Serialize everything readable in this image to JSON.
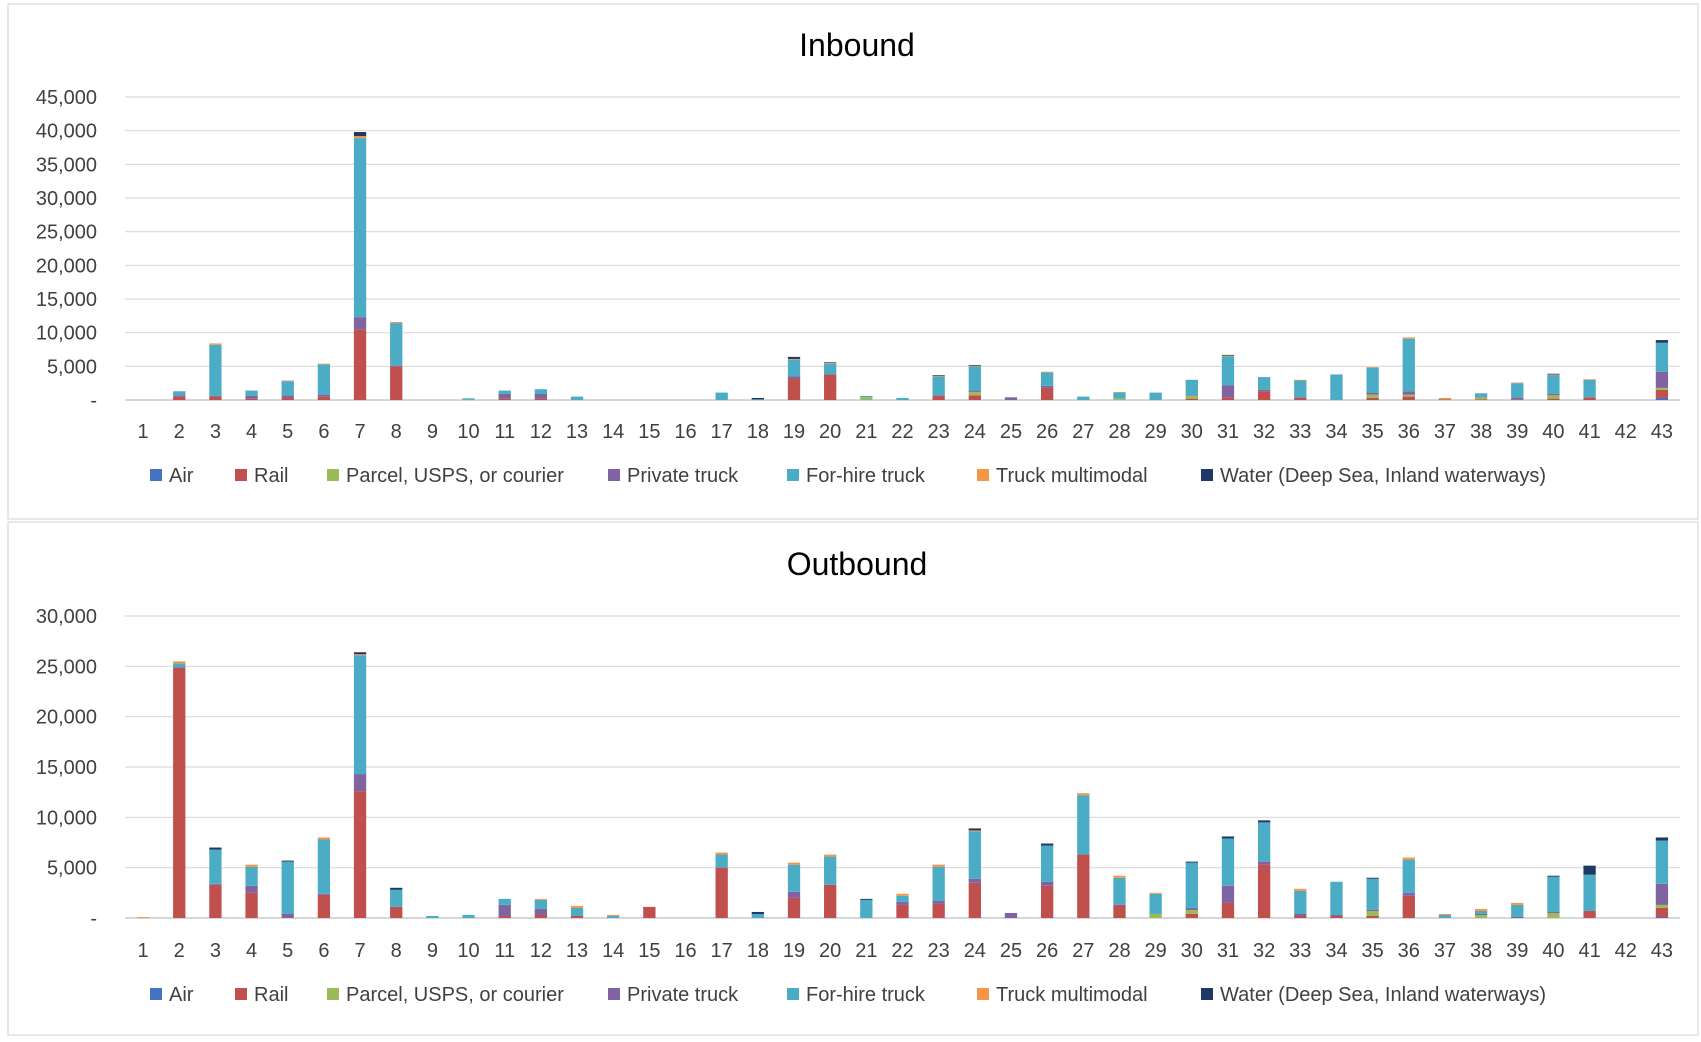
{
  "series_names": [
    "Air",
    "Rail",
    "Parcel, USPS, or courier",
    "Private truck",
    "For-hire truck",
    "Truck multimodal",
    "Water (Deep Sea, Inland waterways)"
  ],
  "series_colors": [
    "#4472C4",
    "#C0504D",
    "#9BBB59",
    "#8064A2",
    "#4BACC6",
    "#F79646",
    "#1F3864"
  ],
  "chart_data": [
    {
      "type": "bar",
      "stacked": true,
      "title": "Inbound",
      "xlabel": "",
      "ylabel": "",
      "ylim": [
        0,
        45000
      ],
      "yticks": [
        0,
        5000,
        10000,
        15000,
        20000,
        25000,
        30000,
        35000,
        40000,
        45000
      ],
      "ytick_labels": [
        "-",
        "5,000",
        "10,000",
        "15,000",
        "20,000",
        "25,000",
        "30,000",
        "35,000",
        "40,000",
        "45,000"
      ],
      "grid": true,
      "legend": "bottom",
      "categories": [
        "1",
        "2",
        "3",
        "4",
        "5",
        "6",
        "7",
        "8",
        "9",
        "10",
        "11",
        "12",
        "13",
        "14",
        "15",
        "16",
        "17",
        "18",
        "19",
        "20",
        "21",
        "22",
        "23",
        "24",
        "25",
        "26",
        "27",
        "28",
        "29",
        "30",
        "31",
        "32",
        "33",
        "34",
        "35",
        "36",
        "37",
        "38",
        "39",
        "40",
        "41",
        "42",
        "43"
      ],
      "series": [
        {
          "name": "Air",
          "values": [
            0,
            0,
            0,
            0,
            0,
            0,
            0,
            0,
            0,
            0,
            0,
            0,
            0,
            0,
            0,
            0,
            0,
            0,
            0,
            0,
            0,
            0,
            0,
            0,
            0,
            0,
            0,
            0,
            0,
            0,
            0,
            0,
            0,
            0,
            0,
            0,
            0,
            0,
            0,
            0,
            0,
            0,
            300
          ]
        },
        {
          "name": "Rail",
          "values": [
            0,
            500,
            500,
            200,
            300,
            500,
            10500,
            5000,
            0,
            0,
            200,
            200,
            0,
            0,
            0,
            0,
            0,
            0,
            3200,
            3800,
            0,
            0,
            600,
            700,
            0,
            1800,
            0,
            0,
            0,
            200,
            400,
            1300,
            300,
            0,
            300,
            500,
            100,
            100,
            100,
            200,
            400,
            0,
            1200
          ]
        },
        {
          "name": "Parcel, USPS, or courier",
          "values": [
            0,
            0,
            0,
            0,
            0,
            0,
            0,
            0,
            0,
            50,
            0,
            0,
            0,
            0,
            0,
            0,
            0,
            0,
            0,
            0,
            400,
            0,
            0,
            500,
            0,
            0,
            0,
            200,
            0,
            400,
            0,
            0,
            0,
            0,
            500,
            300,
            0,
            300,
            0,
            500,
            0,
            0,
            300
          ]
        },
        {
          "name": "Private truck",
          "values": [
            0,
            200,
            100,
            400,
            400,
            300,
            1800,
            100,
            0,
            0,
            700,
            700,
            0,
            0,
            0,
            0,
            0,
            0,
            300,
            0,
            0,
            0,
            100,
            200,
            400,
            300,
            0,
            0,
            0,
            100,
            1800,
            200,
            100,
            0,
            300,
            500,
            0,
            100,
            200,
            200,
            0,
            0,
            2400
          ]
        },
        {
          "name": "For-hire truck",
          "values": [
            0,
            600,
            7600,
            800,
            2100,
            4500,
            26600,
            6200,
            0,
            200,
            500,
            700,
            500,
            0,
            0,
            0,
            1100,
            100,
            2500,
            1600,
            200,
            300,
            2800,
            3600,
            0,
            2000,
            500,
            900,
            1100,
            2300,
            4300,
            1900,
            2500,
            3800,
            3700,
            7800,
            0,
            500,
            2200,
            2800,
            2600,
            0,
            4300
          ]
        },
        {
          "name": "Truck multimodal",
          "values": [
            0,
            0,
            200,
            0,
            100,
            100,
            300,
            100,
            0,
            0,
            0,
            0,
            0,
            0,
            0,
            0,
            0,
            0,
            100,
            100,
            0,
            0,
            100,
            100,
            0,
            100,
            0,
            100,
            0,
            0,
            100,
            0,
            100,
            0,
            100,
            200,
            200,
            0,
            100,
            100,
            100,
            0,
            0
          ]
        },
        {
          "name": "Water (Deep Sea, Inland waterways)",
          "values": [
            0,
            0,
            0,
            0,
            0,
            0,
            600,
            100,
            0,
            0,
            0,
            0,
            0,
            0,
            0,
            0,
            0,
            200,
            300,
            100,
            0,
            0,
            100,
            100,
            0,
            0,
            0,
            0,
            0,
            0,
            100,
            0,
            0,
            0,
            0,
            0,
            0,
            0,
            0,
            100,
            0,
            0,
            400
          ]
        }
      ]
    },
    {
      "type": "bar",
      "stacked": true,
      "title": "Outbound",
      "xlabel": "",
      "ylabel": "",
      "ylim": [
        0,
        30000
      ],
      "yticks": [
        0,
        5000,
        10000,
        15000,
        20000,
        25000,
        30000
      ],
      "ytick_labels": [
        "-",
        "5,000",
        "10,000",
        "15,000",
        "20,000",
        "25,000",
        "30,000"
      ],
      "grid": true,
      "legend": "bottom",
      "categories": [
        "1",
        "2",
        "3",
        "4",
        "5",
        "6",
        "7",
        "8",
        "9",
        "10",
        "11",
        "12",
        "13",
        "14",
        "15",
        "16",
        "17",
        "18",
        "19",
        "20",
        "21",
        "22",
        "23",
        "24",
        "25",
        "26",
        "27",
        "28",
        "29",
        "30",
        "31",
        "32",
        "33",
        "34",
        "35",
        "36",
        "37",
        "38",
        "39",
        "40",
        "41",
        "42",
        "43"
      ],
      "series": [
        {
          "name": "Air",
          "values": [
            0,
            0,
            0,
            0,
            0,
            0,
            0,
            0,
            0,
            0,
            0,
            0,
            0,
            0,
            0,
            0,
            0,
            0,
            0,
            0,
            0,
            0,
            0,
            0,
            0,
            0,
            0,
            0,
            0,
            0,
            0,
            0,
            0,
            0,
            0,
            0,
            0,
            0,
            0,
            0,
            0,
            0,
            100
          ]
        },
        {
          "name": "Rail",
          "values": [
            0,
            24900,
            3300,
            2500,
            0,
            2300,
            12600,
            1100,
            0,
            0,
            200,
            300,
            200,
            0,
            1100,
            0,
            5000,
            0,
            2000,
            3300,
            0,
            1300,
            1400,
            3500,
            0,
            3200,
            6300,
            1300,
            0,
            400,
            1500,
            5300,
            200,
            200,
            200,
            2200,
            0,
            0,
            0,
            0,
            700,
            0,
            900
          ]
        },
        {
          "name": "Parcel, USPS, or courier",
          "values": [
            0,
            0,
            0,
            0,
            0,
            0,
            0,
            0,
            0,
            0,
            0,
            0,
            0,
            0,
            0,
            0,
            0,
            0,
            0,
            0,
            0,
            0,
            0,
            0,
            0,
            0,
            0,
            0,
            400,
            400,
            0,
            0,
            0,
            0,
            500,
            0,
            0,
            300,
            0,
            500,
            0,
            0,
            300
          ]
        },
        {
          "name": "Private truck",
          "values": [
            0,
            0,
            100,
            700,
            400,
            100,
            1700,
            0,
            0,
            0,
            1100,
            600,
            0,
            0,
            0,
            0,
            0,
            0,
            600,
            0,
            0,
            300,
            300,
            400,
            500,
            400,
            0,
            0,
            0,
            200,
            1700,
            300,
            200,
            100,
            100,
            300,
            0,
            100,
            100,
            100,
            0,
            0,
            2100
          ]
        },
        {
          "name": "For-hire truck",
          "values": [
            0,
            400,
            3400,
            1900,
            5200,
            5400,
            11800,
            1700,
            200,
            300,
            600,
            900,
            800,
            200,
            0,
            0,
            1300,
            400,
            2700,
            2800,
            1800,
            600,
            3400,
            4700,
            0,
            3600,
            5900,
            2700,
            2000,
            4500,
            4700,
            3900,
            2300,
            3300,
            3100,
            3300,
            300,
            300,
            1200,
            3500,
            3600,
            0,
            4300
          ]
        },
        {
          "name": "Truck multimodal",
          "values": [
            100,
            200,
            0,
            200,
            0,
            200,
            100,
            0,
            0,
            0,
            0,
            100,
            200,
            100,
            0,
            0,
            200,
            0,
            200,
            200,
            0,
            200,
            200,
            100,
            0,
            0,
            200,
            200,
            100,
            0,
            0,
            0,
            200,
            0,
            0,
            200,
            100,
            200,
            200,
            0,
            0,
            0,
            0
          ]
        },
        {
          "name": "Water (Deep Sea, Inland waterways)",
          "values": [
            0,
            0,
            200,
            0,
            100,
            0,
            200,
            200,
            0,
            0,
            0,
            0,
            0,
            0,
            0,
            0,
            0,
            200,
            0,
            0,
            100,
            0,
            0,
            200,
            0,
            200,
            0,
            0,
            0,
            100,
            200,
            200,
            0,
            0,
            100,
            0,
            0,
            0,
            0,
            100,
            900,
            0,
            300
          ]
        }
      ]
    }
  ]
}
